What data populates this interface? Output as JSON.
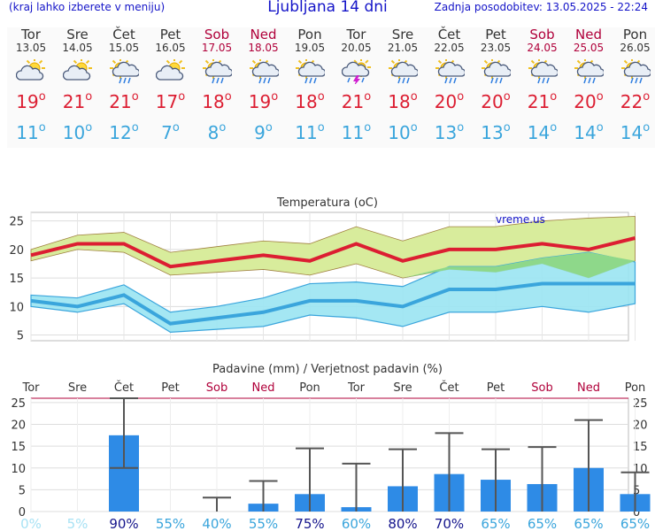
{
  "header": {
    "left": "(kraj lahko izberete v meniju)",
    "title": "Ljubljana 14 dni",
    "right": "Zadnja posodobitev: 13.05.2025 - 22:24"
  },
  "days": [
    {
      "name": "Tor",
      "date": "13.05",
      "weekend": false,
      "icon": "partly-cloudy-icon",
      "tmax": "19",
      "tmin": "11"
    },
    {
      "name": "Sre",
      "date": "14.05",
      "weekend": false,
      "icon": "partly-cloudy-icon",
      "tmax": "21",
      "tmin": "10"
    },
    {
      "name": "Čet",
      "date": "15.05",
      "weekend": false,
      "icon": "sun-cloud-rain-icon",
      "tmax": "21",
      "tmin": "12"
    },
    {
      "name": "Pet",
      "date": "16.05",
      "weekend": false,
      "icon": "partly-cloudy-icon",
      "tmax": "17",
      "tmin": "7"
    },
    {
      "name": "Sob",
      "date": "17.05",
      "weekend": true,
      "icon": "sun-cloud-rain-icon",
      "tmax": "18",
      "tmin": "8"
    },
    {
      "name": "Ned",
      "date": "18.05",
      "weekend": true,
      "icon": "sun-cloud-rain-icon",
      "tmax": "19",
      "tmin": "9"
    },
    {
      "name": "Pon",
      "date": "19.05",
      "weekend": false,
      "icon": "sun-cloud-rain-icon",
      "tmax": "18",
      "tmin": "11"
    },
    {
      "name": "Tor",
      "date": "20.05",
      "weekend": false,
      "icon": "thunderstorm-icon",
      "tmax": "21",
      "tmin": "11"
    },
    {
      "name": "Sre",
      "date": "21.05",
      "weekend": false,
      "icon": "sun-cloud-rain-icon",
      "tmax": "18",
      "tmin": "10"
    },
    {
      "name": "Čet",
      "date": "22.05",
      "weekend": false,
      "icon": "sun-cloud-rain-icon",
      "tmax": "20",
      "tmin": "13"
    },
    {
      "name": "Pet",
      "date": "23.05",
      "weekend": false,
      "icon": "sun-cloud-rain-icon",
      "tmax": "20",
      "tmin": "13"
    },
    {
      "name": "Sob",
      "date": "24.05",
      "weekend": true,
      "icon": "sun-cloud-rain-icon",
      "tmax": "21",
      "tmin": "14"
    },
    {
      "name": "Ned",
      "date": "25.05",
      "weekend": true,
      "icon": "sun-cloud-rain-icon",
      "tmax": "20",
      "tmin": "14"
    },
    {
      "name": "Pon",
      "date": "26.05",
      "weekend": false,
      "icon": "sun-cloud-rain-icon",
      "tmax": "22",
      "tmin": "14"
    }
  ],
  "degree_symbol": "o",
  "colors": {
    "max": "#dc1e32",
    "min": "#3aa5dc",
    "weekend": "#b0003a",
    "bar": "#2e8be6",
    "max_band": "#d8ec9c",
    "min_band": "#9ae4f2",
    "overlap_band": "#8ed88a"
  },
  "chart_data": [
    {
      "type": "line",
      "title": "Temperatura (oC)",
      "watermark": "vreme.us",
      "yticks": [
        5,
        10,
        15,
        20,
        25
      ],
      "ylim": [
        4,
        26.5
      ],
      "grid": true,
      "series": [
        {
          "role": "max",
          "values": [
            19,
            21,
            21,
            17,
            18,
            19,
            18,
            21,
            18,
            20,
            20,
            21,
            20,
            22
          ],
          "band_low": [
            18,
            20,
            19.5,
            15.5,
            16,
            16.5,
            15.5,
            17.5,
            15,
            16.5,
            16,
            17.5,
            15,
            18
          ],
          "band_high": [
            20,
            22.5,
            23,
            19.5,
            20.5,
            21.5,
            21,
            24,
            21.5,
            24,
            24,
            25,
            25.5,
            25.8
          ]
        },
        {
          "role": "min",
          "values": [
            11,
            10,
            12,
            7,
            8,
            9,
            11,
            11,
            10,
            13,
            13,
            14,
            14,
            14
          ],
          "band_low": [
            10,
            9,
            10.5,
            5.5,
            6,
            6.5,
            8.5,
            8,
            6.5,
            9,
            9,
            10,
            9,
            10.5
          ],
          "band_high": [
            12,
            11.5,
            13.8,
            9,
            10,
            11.5,
            14,
            14.3,
            13.5,
            17,
            17,
            18.5,
            19.5,
            17.8
          ]
        }
      ]
    },
    {
      "type": "bar",
      "title": "Padavine (mm) / Verjetnost padavin (%)",
      "categories": [
        "Tor",
        "Sre",
        "Čet",
        "Pet",
        "Sob",
        "Ned",
        "Pon",
        "Tor",
        "Sre",
        "Čet",
        "Pet",
        "Sob",
        "Ned",
        "Pon"
      ],
      "weekend": [
        false,
        false,
        false,
        false,
        true,
        true,
        false,
        false,
        false,
        false,
        false,
        true,
        true,
        false
      ],
      "values": [
        0,
        0,
        17.5,
        0,
        0,
        1.8,
        4,
        1,
        5.8,
        8.6,
        7.3,
        6.3,
        10,
        4
      ],
      "err_low": [
        0,
        0,
        10,
        0,
        0,
        0,
        0,
        0,
        0,
        0,
        0,
        0,
        0,
        0
      ],
      "err_high": [
        0,
        0,
        26,
        0,
        3.2,
        7,
        14.5,
        11,
        14.3,
        18,
        14.3,
        14.8,
        21,
        9
      ],
      "probability": [
        "0%",
        "5%",
        "90%",
        "55%",
        "40%",
        "55%",
        "75%",
        "60%",
        "80%",
        "70%",
        "65%",
        "65%",
        "65%",
        "65%"
      ],
      "yticks": [
        0,
        5,
        10,
        15,
        20,
        25
      ],
      "ylim": [
        0,
        26
      ],
      "grid": true
    }
  ]
}
